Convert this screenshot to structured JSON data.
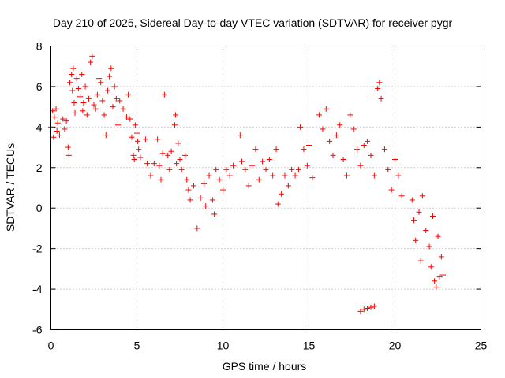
{
  "chart_data": {
    "type": "scatter",
    "title": "Day 210 of 2025, Sidereal Day-to-day VTEC variation (SDTVAR) for receiver pygr",
    "xlabel": "GPS time / hours",
    "ylabel": "SDTVAR / TECUs",
    "xlim": [
      0,
      25
    ],
    "ylim": [
      -6,
      8
    ],
    "xticks": [
      "0",
      "5",
      "10",
      "15",
      "20",
      "25"
    ],
    "yticks": [
      "-6",
      "-4",
      "-2",
      "0",
      "2",
      "4",
      "6",
      "8"
    ],
    "grid": true,
    "marker": "plus",
    "color": "#ff0000",
    "series": [
      {
        "name": "pygr",
        "points": [
          [
            0.0,
            4.0
          ],
          [
            0.1,
            4.8
          ],
          [
            0.15,
            3.5
          ],
          [
            0.2,
            4.5
          ],
          [
            0.3,
            4.9
          ],
          [
            0.35,
            3.8
          ],
          [
            0.4,
            4.2
          ],
          [
            0.5,
            3.6
          ],
          [
            0.7,
            4.4
          ],
          [
            0.8,
            3.9
          ],
          [
            0.9,
            4.3
          ],
          [
            1.0,
            3.0
          ],
          [
            1.05,
            2.6
          ],
          [
            1.1,
            6.2
          ],
          [
            1.2,
            6.6
          ],
          [
            1.25,
            5.8
          ],
          [
            1.3,
            6.9
          ],
          [
            1.35,
            5.2
          ],
          [
            1.4,
            4.7
          ],
          [
            1.5,
            6.4
          ],
          [
            1.6,
            5.9
          ],
          [
            1.7,
            5.5
          ],
          [
            1.8,
            6.6
          ],
          [
            1.85,
            4.8
          ],
          [
            1.9,
            5.2
          ],
          [
            2.0,
            6.0
          ],
          [
            2.1,
            4.6
          ],
          [
            2.2,
            5.4
          ],
          [
            2.3,
            7.2
          ],
          [
            2.4,
            7.5
          ],
          [
            2.5,
            5.1
          ],
          [
            2.6,
            4.9
          ],
          [
            2.7,
            5.6
          ],
          [
            2.8,
            6.4
          ],
          [
            2.9,
            6.2
          ],
          [
            3.0,
            5.3
          ],
          [
            3.1,
            4.6
          ],
          [
            3.2,
            3.6
          ],
          [
            3.3,
            5.8
          ],
          [
            3.4,
            6.5
          ],
          [
            3.5,
            6.9
          ],
          [
            3.6,
            5.0
          ],
          [
            3.7,
            6.0
          ],
          [
            3.8,
            5.4
          ],
          [
            3.9,
            4.1
          ],
          [
            4.0,
            5.3
          ],
          [
            4.2,
            4.9
          ],
          [
            4.4,
            4.5
          ],
          [
            4.5,
            5.6
          ],
          [
            4.6,
            4.4
          ],
          [
            4.7,
            3.5
          ],
          [
            4.8,
            2.6
          ],
          [
            4.85,
            2.4
          ],
          [
            4.9,
            4.1
          ],
          [
            5.0,
            3.7
          ],
          [
            5.05,
            3.3
          ],
          [
            5.1,
            2.9
          ],
          [
            5.2,
            2.5
          ],
          [
            5.5,
            3.4
          ],
          [
            5.6,
            2.2
          ],
          [
            5.8,
            1.6
          ],
          [
            6.0,
            2.2
          ],
          [
            6.2,
            3.4
          ],
          [
            6.3,
            2.1
          ],
          [
            6.4,
            1.4
          ],
          [
            6.5,
            2.7
          ],
          [
            6.6,
            5.6
          ],
          [
            6.8,
            2.6
          ],
          [
            6.9,
            1.9
          ],
          [
            7.0,
            2.8
          ],
          [
            7.2,
            4.1
          ],
          [
            7.25,
            4.6
          ],
          [
            7.3,
            2.2
          ],
          [
            7.4,
            3.2
          ],
          [
            7.5,
            2.4
          ],
          [
            7.6,
            1.9
          ],
          [
            7.8,
            2.6
          ],
          [
            7.9,
            1.4
          ],
          [
            8.0,
            0.9
          ],
          [
            8.1,
            0.4
          ],
          [
            8.3,
            1.1
          ],
          [
            8.5,
            -1.0
          ],
          [
            8.7,
            0.5
          ],
          [
            8.9,
            1.2
          ],
          [
            9.0,
            0.1
          ],
          [
            9.2,
            1.6
          ],
          [
            9.4,
            0.4
          ],
          [
            9.5,
            -0.3
          ],
          [
            9.6,
            1.9
          ],
          [
            9.8,
            1.4
          ],
          [
            10.0,
            0.9
          ],
          [
            10.2,
            1.9
          ],
          [
            10.4,
            1.6
          ],
          [
            10.6,
            2.1
          ],
          [
            11.0,
            3.6
          ],
          [
            11.1,
            2.3
          ],
          [
            11.3,
            1.9
          ],
          [
            11.5,
            1.1
          ],
          [
            11.7,
            2.1
          ],
          [
            11.9,
            2.9
          ],
          [
            12.1,
            1.4
          ],
          [
            12.3,
            2.3
          ],
          [
            12.5,
            1.9
          ],
          [
            12.7,
            2.4
          ],
          [
            12.9,
            1.6
          ],
          [
            13.1,
            2.9
          ],
          [
            13.2,
            0.2
          ],
          [
            13.4,
            0.7
          ],
          [
            13.6,
            1.6
          ],
          [
            13.8,
            1.1
          ],
          [
            14.0,
            1.9
          ],
          [
            14.2,
            1.6
          ],
          [
            14.4,
            1.9
          ],
          [
            14.5,
            4.0
          ],
          [
            14.7,
            2.9
          ],
          [
            14.9,
            2.1
          ],
          [
            15.0,
            3.1
          ],
          [
            15.2,
            1.5
          ],
          [
            15.6,
            4.6
          ],
          [
            15.8,
            3.9
          ],
          [
            16.0,
            4.9
          ],
          [
            16.2,
            3.3
          ],
          [
            16.4,
            2.6
          ],
          [
            16.6,
            3.6
          ],
          [
            16.8,
            4.1
          ],
          [
            17.0,
            2.4
          ],
          [
            17.2,
            1.6
          ],
          [
            17.4,
            4.6
          ],
          [
            17.6,
            3.9
          ],
          [
            17.8,
            2.9
          ],
          [
            18.0,
            2.1
          ],
          [
            18.2,
            3.1
          ],
          [
            18.4,
            3.3
          ],
          [
            18.6,
            2.6
          ],
          [
            18.8,
            1.6
          ],
          [
            19.0,
            5.9
          ],
          [
            19.1,
            6.2
          ],
          [
            19.2,
            5.4
          ],
          [
            19.4,
            2.9
          ],
          [
            19.6,
            1.9
          ],
          [
            19.8,
            0.9
          ],
          [
            20.0,
            2.4
          ],
          [
            20.2,
            1.6
          ],
          [
            20.4,
            0.6
          ],
          [
            18.0,
            -5.1
          ],
          [
            18.2,
            -5.0
          ],
          [
            18.4,
            -4.95
          ],
          [
            18.6,
            -4.9
          ],
          [
            18.8,
            -4.85
          ],
          [
            21.0,
            0.4
          ],
          [
            21.1,
            -0.6
          ],
          [
            21.2,
            -1.6
          ],
          [
            21.4,
            -0.2
          ],
          [
            21.5,
            -2.6
          ],
          [
            21.6,
            0.6
          ],
          [
            21.8,
            -1.1
          ],
          [
            22.0,
            -1.9
          ],
          [
            22.1,
            -2.9
          ],
          [
            22.2,
            -0.4
          ],
          [
            22.3,
            -3.6
          ],
          [
            22.4,
            -3.9
          ],
          [
            22.5,
            -1.4
          ],
          [
            22.6,
            -3.4
          ],
          [
            22.7,
            -2.4
          ],
          [
            22.8,
            -3.3
          ]
        ]
      }
    ]
  }
}
